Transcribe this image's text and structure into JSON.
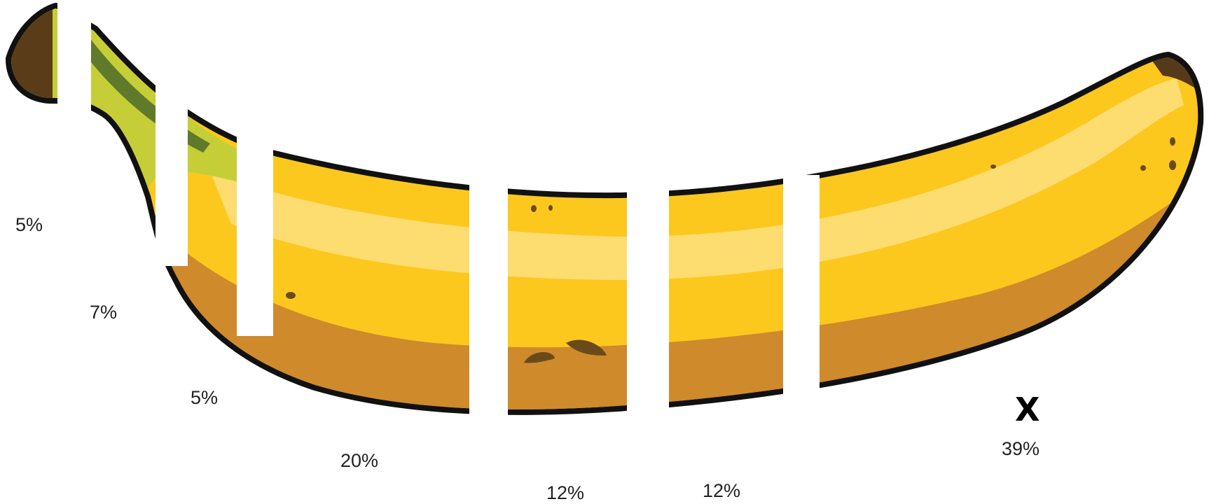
{
  "segments": [
    {
      "label": "5%"
    },
    {
      "label": "7%"
    },
    {
      "label": "5%"
    },
    {
      "label": "20%"
    },
    {
      "label": "12%"
    },
    {
      "label": "12%"
    },
    {
      "label": "39%",
      "marker": "X"
    }
  ],
  "colors": {
    "outline": "#111111",
    "stem_brown": "#5a3c19",
    "stem_green": "#c5ce36",
    "stem_dark_green": "#5f7a2a",
    "peel_yellow": "#fcc81e",
    "peel_highlight": "#fddc70",
    "peel_shadow": "#cf8a2c",
    "spot": "#6b4a1a",
    "tip_brown": "#55391b",
    "background": "#ffffff"
  }
}
